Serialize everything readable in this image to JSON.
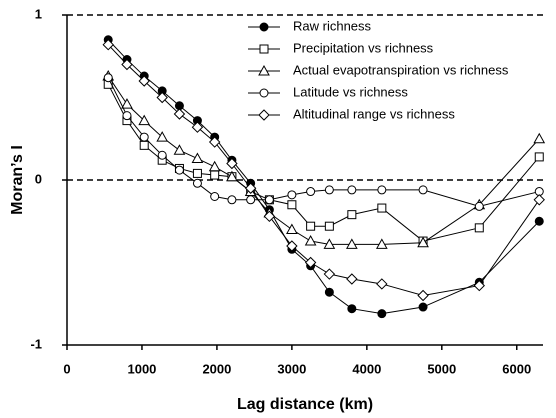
{
  "chart_data": {
    "type": "line",
    "x_label": "Lag distance (km)",
    "y_label": "Moran’s I",
    "x": [
      550,
      800,
      1030,
      1270,
      1500,
      1740,
      1970,
      2200,
      2450,
      2700,
      3000,
      3250,
      3500,
      3800,
      4200,
      4750,
      5500,
      6300
    ],
    "series": [
      {
        "name": "Raw richness",
        "color": "#000000",
        "marker": "filled-circle",
        "values": [
          0.85,
          0.73,
          0.63,
          0.54,
          0.45,
          0.36,
          0.26,
          0.12,
          -0.02,
          -0.18,
          -0.42,
          -0.52,
          -0.68,
          -0.78,
          -0.81,
          -0.77,
          -0.62,
          -0.25
        ]
      },
      {
        "name": "Precipitation vs richness",
        "color": "#000000",
        "marker": "open-square",
        "values": [
          0.58,
          0.36,
          0.21,
          0.12,
          0.07,
          0.04,
          0.03,
          0.02,
          -0.07,
          -0.12,
          -0.15,
          -0.28,
          -0.28,
          -0.21,
          -0.17,
          -0.37,
          -0.29,
          0.14
        ]
      },
      {
        "name": "Actual evapotranspiration vs richness",
        "color": "#000000",
        "marker": "open-triangle",
        "values": [
          0.63,
          0.46,
          0.36,
          0.26,
          0.18,
          0.13,
          0.08,
          0.02,
          -0.07,
          -0.2,
          -0.3,
          -0.37,
          -0.39,
          -0.39,
          -0.39,
          -0.38,
          -0.15,
          0.25
        ]
      },
      {
        "name": "Latitude vs richness",
        "color": "#000000",
        "marker": "open-circle",
        "values": [
          0.62,
          0.39,
          0.26,
          0.15,
          0.06,
          -0.02,
          -0.1,
          -0.12,
          -0.12,
          -0.12,
          -0.09,
          -0.07,
          -0.06,
          -0.06,
          -0.06,
          -0.06,
          -0.16,
          -0.07
        ]
      },
      {
        "name": "Altitudinal range vs richness",
        "color": "#000000",
        "marker": "open-diamond",
        "values": [
          0.82,
          0.7,
          0.6,
          0.5,
          0.4,
          0.32,
          0.23,
          0.1,
          -0.05,
          -0.22,
          -0.4,
          -0.5,
          -0.57,
          -0.6,
          -0.63,
          -0.7,
          -0.64,
          -0.12
        ]
      }
    ],
    "xlim": [
      0,
      6350
    ],
    "xticks": [
      0,
      1000,
      2000,
      3000,
      4000,
      5000,
      6000
    ],
    "ylim": [
      -1,
      1
    ],
    "yticks": [
      -1,
      0,
      1
    ],
    "zero_line": true
  }
}
